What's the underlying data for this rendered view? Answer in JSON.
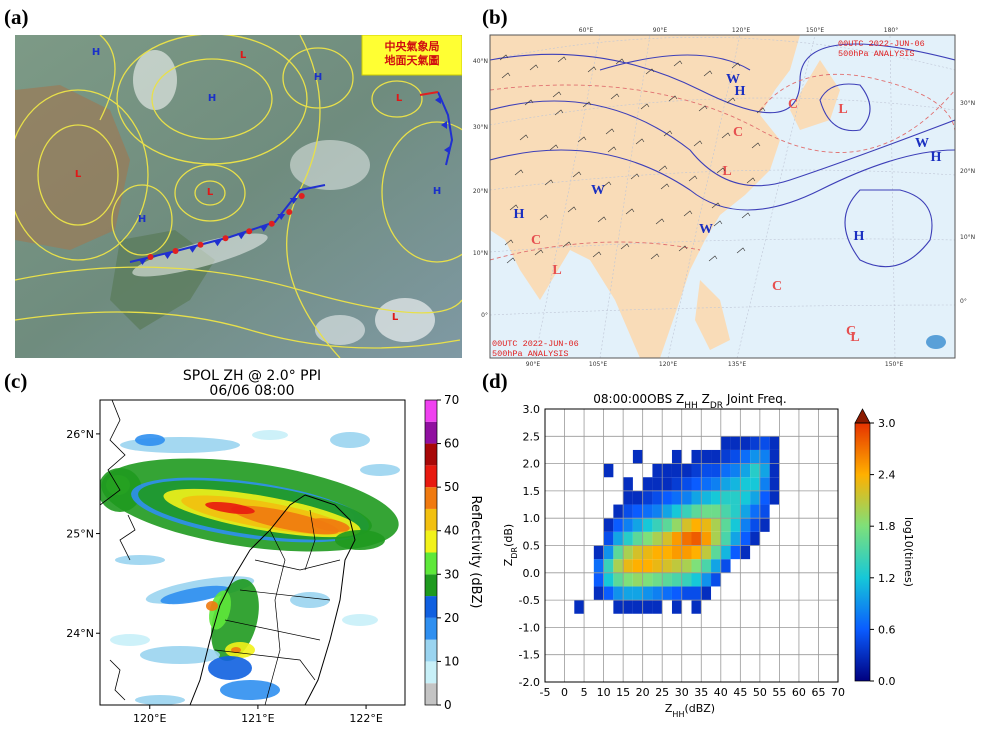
{
  "panels": {
    "a": "(a)",
    "b": "(b)",
    "c": "(c)",
    "d": "(d)"
  },
  "surface_map": {
    "header": [
      "中央氣象局",
      "地面天氣圖"
    ],
    "labels": [
      "H",
      "L",
      "H",
      "L",
      "H",
      "L",
      "L",
      "H",
      "H",
      "L"
    ]
  },
  "upper_map": {
    "stamp": [
      "00UTC  2022-JUN-06",
      "500hPa ANALYSIS"
    ],
    "labels": [
      "W",
      "H",
      "C",
      "L",
      "C",
      "L",
      "W",
      "H",
      "W",
      "W",
      "H",
      "H",
      "C",
      "L",
      "C",
      "C",
      "L"
    ],
    "lon_top": [
      "60°E",
      "90°E",
      "120°E",
      "150°E",
      "180°"
    ],
    "lon_bottom": [
      "90°E",
      "105°E",
      "120°E",
      "135°E",
      "150°E"
    ],
    "lat_left": [
      "40°N",
      "30°N",
      "20°N",
      "10°N",
      "0°"
    ],
    "lat_right": [
      "30°N",
      "20°N",
      "10°N",
      "0°"
    ]
  },
  "chart_data": [
    {
      "type": "map",
      "title": "SPOL ZH @ 2.0° PPI",
      "subtitle": "06/06 08:00",
      "xlim": [
        119.54,
        122.36
      ],
      "ylim": [
        23.28,
        26.34
      ],
      "xticks": [
        {
          "value": 120,
          "label": "120°E"
        },
        {
          "value": 121,
          "label": "121°E"
        },
        {
          "value": 122,
          "label": "122°E"
        }
      ],
      "yticks": [
        {
          "value": 24,
          "label": "24°N"
        },
        {
          "value": 25,
          "label": "25°N"
        },
        {
          "value": 26,
          "label": "26°N"
        }
      ],
      "colorbar": {
        "label": "Reflectivity (dBZ)",
        "lim": [
          0,
          70
        ],
        "ticks": [
          0,
          10,
          20,
          30,
          40,
          50,
          60,
          70
        ],
        "colors": [
          "#c4c4c4",
          "#c8f0f8",
          "#9ad4f0",
          "#2f8ff0",
          "#1060e0",
          "#1f9a1f",
          "#5ee83a",
          "#f2f21a",
          "#f2c010",
          "#f07a10",
          "#e81a10",
          "#a80808",
          "#9010a0",
          "#f040f0"
        ]
      }
    },
    {
      "type": "heatmap",
      "title_parts": [
        "08:00:00OBS Z",
        "HH",
        " Z",
        "DR",
        " Joint Freq."
      ],
      "x_label_parts": [
        "Z",
        "HH",
        "(dBZ)"
      ],
      "y_label_parts": [
        "Z",
        "DR",
        "(dB)"
      ],
      "x_edges": [
        2.5,
        5,
        7.5,
        10,
        12.5,
        15,
        17.5,
        20,
        22.5,
        25,
        27.5,
        30,
        32.5,
        35,
        37.5,
        40,
        42.5,
        45,
        47.5,
        50,
        52.5,
        55
      ],
      "y_edges": [
        -0.75,
        -0.5,
        -0.25,
        0,
        0.25,
        0.5,
        0.75,
        1,
        1.25,
        1.5,
        1.75,
        2,
        2.25,
        2.5
      ],
      "values": [
        [
          0.3,
          null,
          null,
          null,
          0.3,
          0.3,
          0.3,
          0.3,
          0.3,
          null,
          0.3,
          null,
          0.3,
          null,
          null,
          null,
          null,
          null,
          null,
          null,
          null
        ],
        [
          null,
          null,
          0.3,
          0.6,
          0.9,
          1.0,
          1.0,
          0.9,
          0.8,
          0.7,
          0.6,
          0.5,
          0.5,
          0.3,
          null,
          null,
          null,
          null,
          null,
          null,
          null
        ],
        [
          null,
          null,
          0.6,
          1.2,
          1.6,
          1.8,
          1.9,
          1.8,
          1.7,
          1.6,
          1.5,
          1.4,
          1.2,
          0.9,
          0.5,
          null,
          null,
          null,
          null,
          null,
          null
        ],
        [
          null,
          null,
          0.7,
          1.4,
          2.0,
          2.3,
          2.4,
          2.4,
          2.3,
          2.2,
          2.1,
          2.0,
          1.8,
          1.5,
          1.0,
          0.5,
          null,
          null,
          null,
          null,
          null
        ],
        [
          null,
          null,
          0.3,
          0.9,
          1.6,
          2.0,
          2.2,
          2.3,
          2.4,
          2.4,
          2.5,
          2.5,
          2.4,
          2.1,
          1.6,
          1.1,
          0.6,
          0.3,
          null,
          null,
          null
        ],
        [
          null,
          null,
          null,
          0.5,
          1.0,
          1.3,
          1.6,
          1.8,
          2.0,
          2.2,
          2.5,
          2.7,
          2.8,
          2.5,
          2.0,
          1.5,
          1.0,
          0.6,
          0.3,
          null,
          null
        ],
        [
          null,
          null,
          null,
          0.3,
          0.6,
          0.8,
          1.0,
          1.2,
          1.4,
          1.6,
          1.9,
          2.2,
          2.4,
          2.3,
          2.0,
          1.6,
          1.2,
          0.8,
          0.5,
          0.3,
          null
        ],
        [
          null,
          null,
          null,
          null,
          0.3,
          0.5,
          0.6,
          0.7,
          0.8,
          1.0,
          1.2,
          1.4,
          1.6,
          1.7,
          1.7,
          1.5,
          1.3,
          1.0,
          0.7,
          0.5,
          null
        ],
        [
          null,
          null,
          null,
          null,
          null,
          0.3,
          0.3,
          0.4,
          0.5,
          0.6,
          0.7,
          0.8,
          1.0,
          1.1,
          1.2,
          1.3,
          1.3,
          1.2,
          1.0,
          0.6,
          0.3
        ],
        [
          null,
          null,
          null,
          null,
          null,
          0.3,
          null,
          0.3,
          0.3,
          0.3,
          0.4,
          0.5,
          0.6,
          0.7,
          0.8,
          1.0,
          1.1,
          1.2,
          1.2,
          0.8,
          0.3
        ],
        [
          null,
          null,
          null,
          0.3,
          null,
          null,
          null,
          null,
          0.3,
          0.3,
          0.3,
          0.3,
          0.4,
          0.5,
          0.5,
          0.7,
          0.8,
          1.0,
          1.3,
          1.0,
          0.3
        ],
        [
          null,
          null,
          null,
          null,
          null,
          null,
          0.3,
          null,
          null,
          null,
          0.3,
          null,
          0.3,
          0.3,
          0.3,
          0.4,
          0.5,
          0.7,
          0.9,
          0.8,
          0.3
        ],
        [
          null,
          null,
          null,
          null,
          null,
          null,
          null,
          null,
          null,
          null,
          null,
          null,
          null,
          null,
          null,
          0.3,
          0.3,
          0.3,
          0.4,
          0.5,
          0.3
        ]
      ],
      "xlim": [
        -5,
        70
      ],
      "ylim": [
        -2,
        3
      ],
      "xticks": [
        -5,
        0,
        5,
        10,
        15,
        20,
        25,
        30,
        35,
        40,
        45,
        50,
        55,
        60,
        65,
        70
      ],
      "yticks": [
        {
          "value": -2,
          "label": "-2.0"
        },
        -1.5,
        {
          "value": -1,
          "label": "-1.0"
        },
        -0.5,
        {
          "value": 0,
          "label": "0.0"
        },
        0.5,
        {
          "value": 1,
          "label": "1.0"
        },
        1.5,
        {
          "value": 2,
          "label": "2.0"
        },
        2.5,
        {
          "value": 3,
          "label": "3.0"
        }
      ],
      "grid": true,
      "colorbar": {
        "label": "log10(times)",
        "lim": [
          0,
          3
        ],
        "ticks": [
          {
            "value": 0,
            "label": "0.0"
          },
          0.6,
          1.2,
          1.8,
          2.4,
          {
            "value": 3,
            "label": "3.0"
          }
        ],
        "colors": [
          "#00007f",
          "#0a5cff",
          "#16c8d8",
          "#7ee07a",
          "#ffb000",
          "#e63200"
        ],
        "extend": "max"
      }
    }
  ]
}
